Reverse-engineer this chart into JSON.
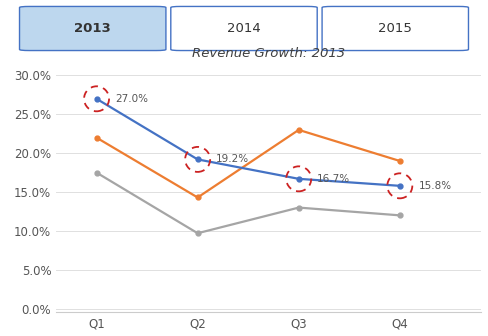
{
  "title": "Revenue Growth: 2013",
  "quarters": [
    "Q1",
    "Q2",
    "Q3",
    "Q4"
  ],
  "blue_line": [
    0.27,
    0.192,
    0.167,
    0.158
  ],
  "orange_line": [
    0.22,
    0.143,
    0.23,
    0.19
  ],
  "gray_line": [
    0.175,
    0.097,
    0.13,
    0.12
  ],
  "blue_color": "#4472C4",
  "orange_color": "#ED7D31",
  "gray_color": "#A5A5A5",
  "highlight_color": "#CC2222",
  "highlight_labels": [
    "27.0%",
    "19.2%",
    "16.7%",
    "15.8%"
  ],
  "highlight_indices": [
    0,
    1,
    2,
    3
  ],
  "yticks": [
    0.0,
    0.05,
    0.1,
    0.15,
    0.2,
    0.25,
    0.3
  ],
  "ytick_labels": [
    "0.0%",
    "5.0%",
    "10.0%",
    "15.0%",
    "20.0%",
    "25.0%",
    "30.0%"
  ],
  "ylim": [
    -0.005,
    0.315
  ],
  "xlim": [
    -0.4,
    3.8
  ],
  "buttons": [
    "2013",
    "2014",
    "2015"
  ],
  "active_button": 0,
  "button_active_bg": "#BDD7EE",
  "button_inactive_bg": "#FFFFFF",
  "button_border_color": "#4472C4",
  "background_color": "#FFFFFF",
  "chart_border_color": "#CCCCCC"
}
